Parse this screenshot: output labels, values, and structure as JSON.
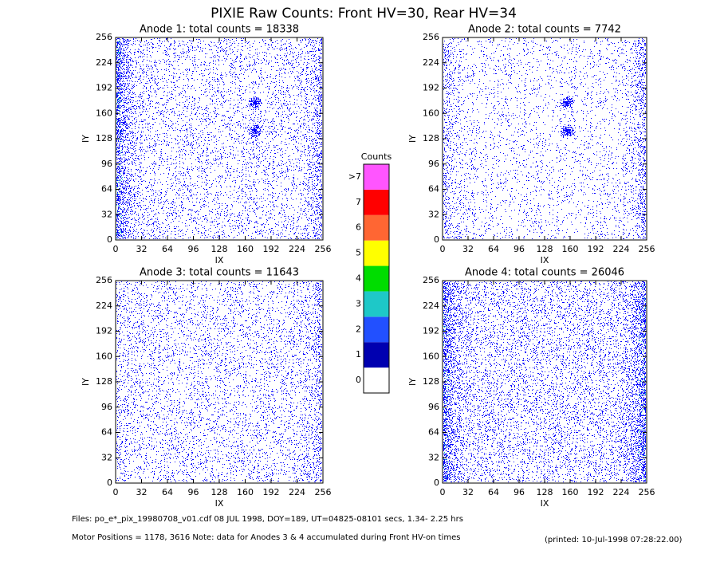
{
  "title": "PIXIE Raw Counts:  Front HV=30, Rear HV=34",
  "chart_data": [
    {
      "type": "heatmap",
      "title": "Anode 1: total counts = 18338",
      "x_label": "IX",
      "y_label": "IY",
      "xlim": [
        0,
        256
      ],
      "ylim": [
        0,
        256
      ],
      "xticks": [
        0,
        32,
        64,
        96,
        128,
        160,
        192,
        224,
        256
      ],
      "yticks": [
        0,
        32,
        64,
        96,
        128,
        160,
        192,
        224,
        256
      ]
    },
    {
      "type": "heatmap",
      "title": "Anode 2: total counts = 7742",
      "x_label": "IX",
      "y_label": "IY",
      "xlim": [
        0,
        256
      ],
      "ylim": [
        0,
        256
      ],
      "xticks": [
        0,
        32,
        64,
        96,
        128,
        160,
        192,
        224,
        256
      ],
      "yticks": [
        0,
        32,
        64,
        96,
        128,
        160,
        192,
        224,
        256
      ]
    },
    {
      "type": "heatmap",
      "title": "Anode 3: total counts = 11643",
      "x_label": "IX",
      "y_label": "IY",
      "xlim": [
        0,
        256
      ],
      "ylim": [
        0,
        256
      ],
      "xticks": [
        0,
        32,
        64,
        96,
        128,
        160,
        192,
        224,
        256
      ],
      "yticks": [
        0,
        32,
        64,
        96,
        128,
        160,
        192,
        224,
        256
      ]
    },
    {
      "type": "heatmap",
      "title": "Anode 4: total counts = 26046",
      "x_label": "IX",
      "y_label": "IY",
      "xlim": [
        0,
        256
      ],
      "ylim": [
        0,
        256
      ],
      "xticks": [
        0,
        32,
        64,
        96,
        128,
        160,
        192,
        224,
        256
      ],
      "yticks": [
        0,
        32,
        64,
        96,
        128,
        160,
        192,
        224,
        256
      ]
    }
  ],
  "colorbar": {
    "title": "Counts",
    "ticks": [
      0,
      1,
      2,
      3,
      4,
      5,
      6,
      7,
      {
        "value": 8,
        "label": ">7"
      }
    ],
    "colors": [
      "#ffffff",
      "#0000b0",
      "#2250ff",
      "#1ec8c8",
      "#00dd00",
      "#ffff00",
      "#ff6633",
      "#ff0000",
      "#ff55ff"
    ]
  },
  "footer": {
    "files": "Files: po_e*_pix_19980708_v01.cdf    08 JUL 1998, DOY=189, UT=04825-08101 secs,  1.34- 2.25 hrs",
    "motor": "Motor Positions = 1178, 3616   Note: data for Anodes 3 & 4 accumulated during Front HV-on times",
    "printed": "(printed: 10-Jul-1998 07:28:22.00)"
  }
}
